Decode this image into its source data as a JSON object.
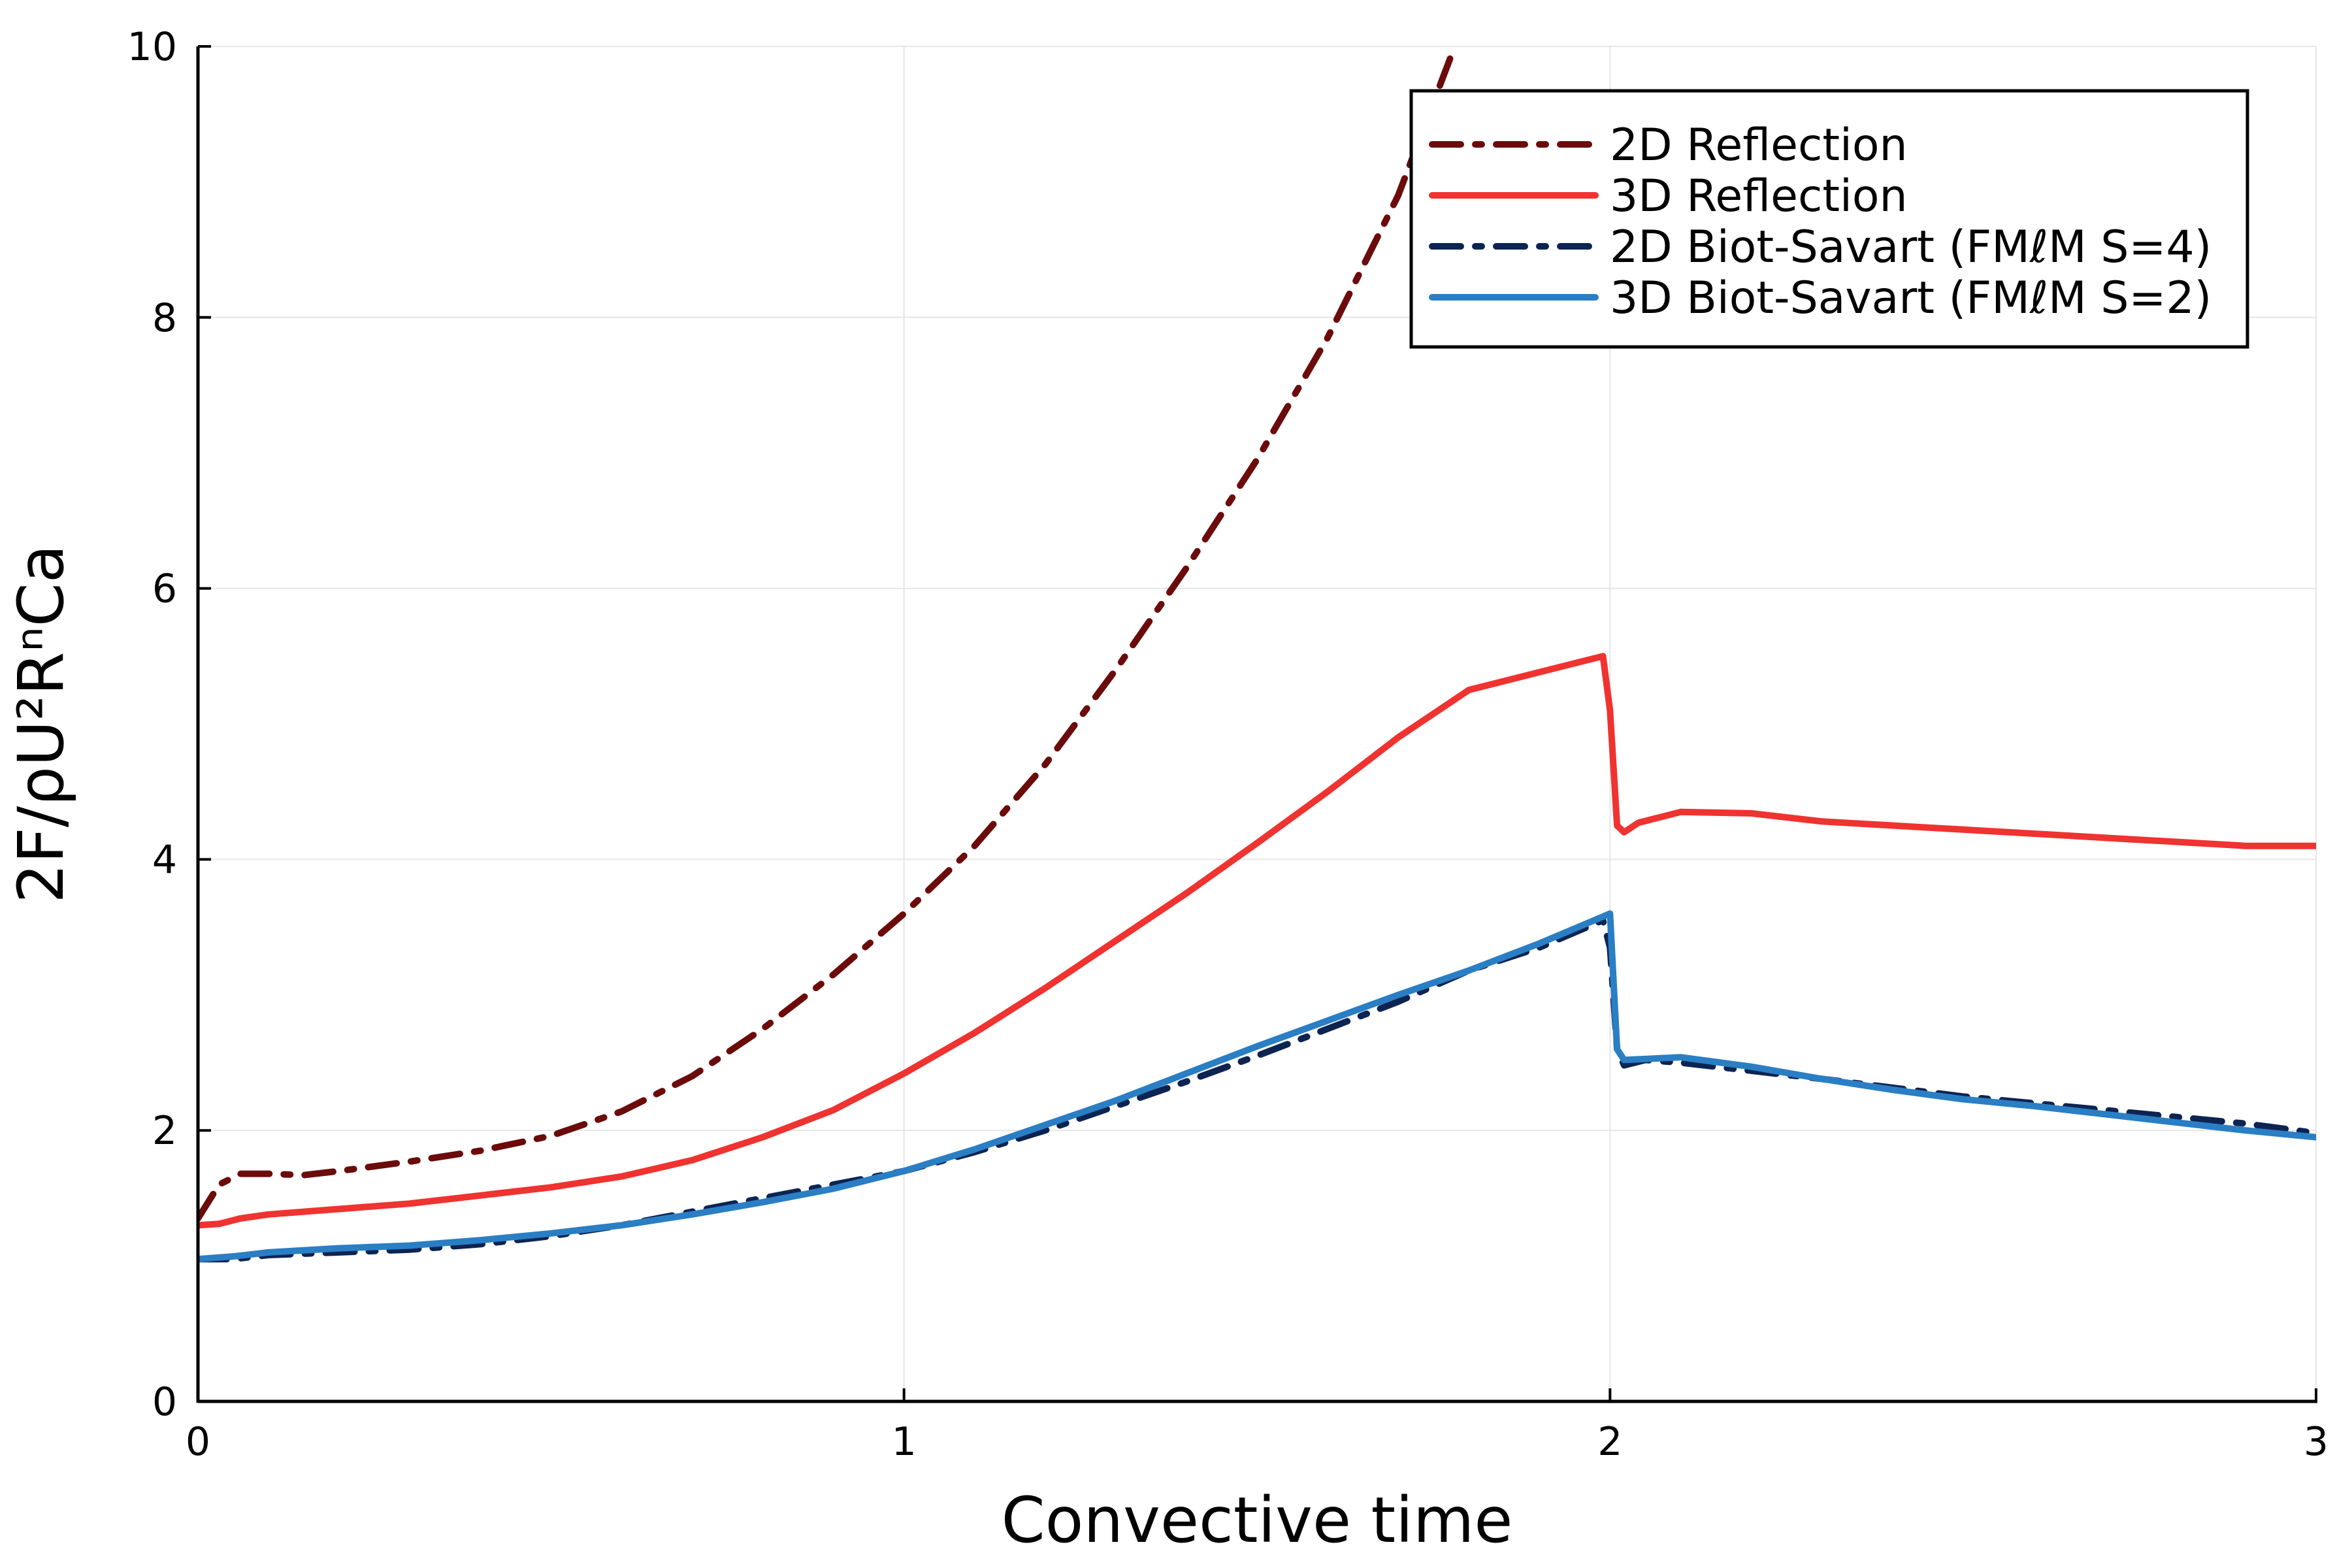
{
  "chart_data": {
    "type": "line",
    "title": "",
    "xlabel": "Convective time",
    "ylabel": "2F/ρU²RⁿCa",
    "xlim": [
      0,
      3
    ],
    "ylim": [
      0,
      10
    ],
    "xticks": [
      0,
      1,
      2,
      3
    ],
    "xtick_labels": [
      "0",
      "1",
      "2",
      "3"
    ],
    "yticks": [
      0,
      2,
      4,
      6,
      8,
      10
    ],
    "ytick_labels": [
      "0",
      "2",
      "4",
      "6",
      "8",
      "10"
    ],
    "grid": true,
    "legend_position": "top-right",
    "series": [
      {
        "name": "2D Reflection",
        "color": "#6b0b0b",
        "style": "dashdot",
        "points": [
          [
            0,
            1.35
          ],
          [
            0.03,
            1.6
          ],
          [
            0.06,
            1.68
          ],
          [
            0.1,
            1.68
          ],
          [
            0.15,
            1.67
          ],
          [
            0.2,
            1.7
          ],
          [
            0.3,
            1.77
          ],
          [
            0.4,
            1.85
          ],
          [
            0.5,
            1.96
          ],
          [
            0.6,
            2.14
          ],
          [
            0.7,
            2.4
          ],
          [
            0.8,
            2.75
          ],
          [
            0.9,
            3.15
          ],
          [
            1.0,
            3.6
          ],
          [
            1.1,
            4.1
          ],
          [
            1.2,
            4.7
          ],
          [
            1.3,
            5.4
          ],
          [
            1.4,
            6.15
          ],
          [
            1.5,
            6.95
          ],
          [
            1.6,
            7.85
          ],
          [
            1.7,
            8.9
          ],
          [
            1.78,
            10.0
          ]
        ]
      },
      {
        "name": "3D Reflection",
        "color": "#ef3330",
        "style": "solid",
        "points": [
          [
            0,
            1.3
          ],
          [
            0.03,
            1.31
          ],
          [
            0.06,
            1.35
          ],
          [
            0.1,
            1.38
          ],
          [
            0.2,
            1.42
          ],
          [
            0.3,
            1.46
          ],
          [
            0.4,
            1.52
          ],
          [
            0.5,
            1.58
          ],
          [
            0.6,
            1.66
          ],
          [
            0.7,
            1.78
          ],
          [
            0.8,
            1.95
          ],
          [
            0.9,
            2.15
          ],
          [
            1.0,
            2.42
          ],
          [
            1.1,
            2.72
          ],
          [
            1.2,
            3.05
          ],
          [
            1.3,
            3.4
          ],
          [
            1.4,
            3.75
          ],
          [
            1.5,
            4.12
          ],
          [
            1.6,
            4.5
          ],
          [
            1.7,
            4.9
          ],
          [
            1.8,
            5.25
          ],
          [
            1.99,
            5.5
          ],
          [
            2.0,
            5.1
          ],
          [
            2.01,
            4.25
          ],
          [
            2.02,
            4.2
          ],
          [
            2.04,
            4.27
          ],
          [
            2.1,
            4.35
          ],
          [
            2.2,
            4.34
          ],
          [
            2.3,
            4.28
          ],
          [
            2.5,
            4.22
          ],
          [
            2.7,
            4.16
          ],
          [
            2.9,
            4.1
          ],
          [
            3.0,
            4.1
          ]
        ]
      },
      {
        "name": "2D Biot-Savart (FMℓM S=4)",
        "color": "#0d2452",
        "style": "dashdot",
        "points": [
          [
            0,
            1.05
          ],
          [
            0.05,
            1.05
          ],
          [
            0.1,
            1.08
          ],
          [
            0.2,
            1.1
          ],
          [
            0.3,
            1.12
          ],
          [
            0.4,
            1.16
          ],
          [
            0.5,
            1.22
          ],
          [
            0.6,
            1.3
          ],
          [
            0.7,
            1.4
          ],
          [
            0.8,
            1.5
          ],
          [
            0.9,
            1.6
          ],
          [
            1.0,
            1.7
          ],
          [
            1.1,
            1.84
          ],
          [
            1.2,
            2.0
          ],
          [
            1.3,
            2.18
          ],
          [
            1.4,
            2.36
          ],
          [
            1.5,
            2.55
          ],
          [
            1.6,
            2.75
          ],
          [
            1.7,
            2.95
          ],
          [
            1.8,
            3.18
          ],
          [
            1.9,
            3.35
          ],
          [
            1.99,
            3.55
          ],
          [
            2.0,
            3.35
          ],
          [
            2.01,
            2.6
          ],
          [
            2.02,
            2.48
          ],
          [
            2.05,
            2.52
          ],
          [
            2.1,
            2.5
          ],
          [
            2.3,
            2.38
          ],
          [
            2.5,
            2.25
          ],
          [
            2.7,
            2.15
          ],
          [
            2.9,
            2.05
          ],
          [
            3.0,
            1.98
          ]
        ]
      },
      {
        "name": "3D Biot-Savart (FMℓM S=2)",
        "color": "#2a7ec4",
        "style": "solid",
        "points": [
          [
            0,
            1.05
          ],
          [
            0.05,
            1.07
          ],
          [
            0.1,
            1.1
          ],
          [
            0.2,
            1.13
          ],
          [
            0.3,
            1.15
          ],
          [
            0.4,
            1.19
          ],
          [
            0.5,
            1.24
          ],
          [
            0.6,
            1.3
          ],
          [
            0.7,
            1.38
          ],
          [
            0.8,
            1.47
          ],
          [
            0.9,
            1.57
          ],
          [
            1.0,
            1.7
          ],
          [
            1.1,
            1.86
          ],
          [
            1.2,
            2.04
          ],
          [
            1.3,
            2.22
          ],
          [
            1.4,
            2.42
          ],
          [
            1.5,
            2.62
          ],
          [
            1.6,
            2.81
          ],
          [
            1.7,
            3.0
          ],
          [
            1.8,
            3.18
          ],
          [
            1.9,
            3.38
          ],
          [
            2.0,
            3.6
          ],
          [
            2.01,
            2.6
          ],
          [
            2.02,
            2.52
          ],
          [
            2.1,
            2.54
          ],
          [
            2.2,
            2.47
          ],
          [
            2.3,
            2.38
          ],
          [
            2.4,
            2.3
          ],
          [
            2.5,
            2.23
          ],
          [
            2.6,
            2.18
          ],
          [
            2.7,
            2.12
          ],
          [
            2.8,
            2.06
          ],
          [
            2.9,
            2.0
          ],
          [
            3.0,
            1.95
          ]
        ]
      }
    ]
  }
}
